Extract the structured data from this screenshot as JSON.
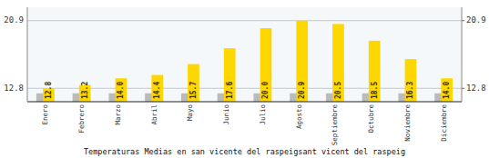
{
  "chart_data": {
    "type": "bar",
    "title": "Temperaturas Medias en san vicente del raspeigsant vicent del raspeig",
    "categories": [
      "Enero",
      "Febrero",
      "Marzo",
      "Abril",
      "Mayo",
      "Junio",
      "Julio",
      "Agosto",
      "Septiembre",
      "Octubre",
      "Noviembre",
      "Diciembre"
    ],
    "series": [
      {
        "color": "#BBBBBB",
        "values": [
          12.2,
          12.2,
          12.2,
          12.2,
          12.2,
          12.2,
          12.2,
          12.2,
          12.2,
          12.2,
          12.2,
          12.2
        ]
      },
      {
        "color": "#FFD700",
        "data_labels": true,
        "values": [
          12.8,
          13.2,
          14.0,
          14.4,
          15.7,
          17.6,
          20.0,
          20.9,
          20.5,
          18.5,
          16.3,
          14.0
        ]
      }
    ],
    "ylim": [
      11.2,
      22.5
    ],
    "yticks": [
      12.8,
      20.9
    ],
    "y2lim": [
      11.2,
      22.5
    ],
    "y2ticks": [
      12.8,
      20.9
    ],
    "grid": true
  }
}
